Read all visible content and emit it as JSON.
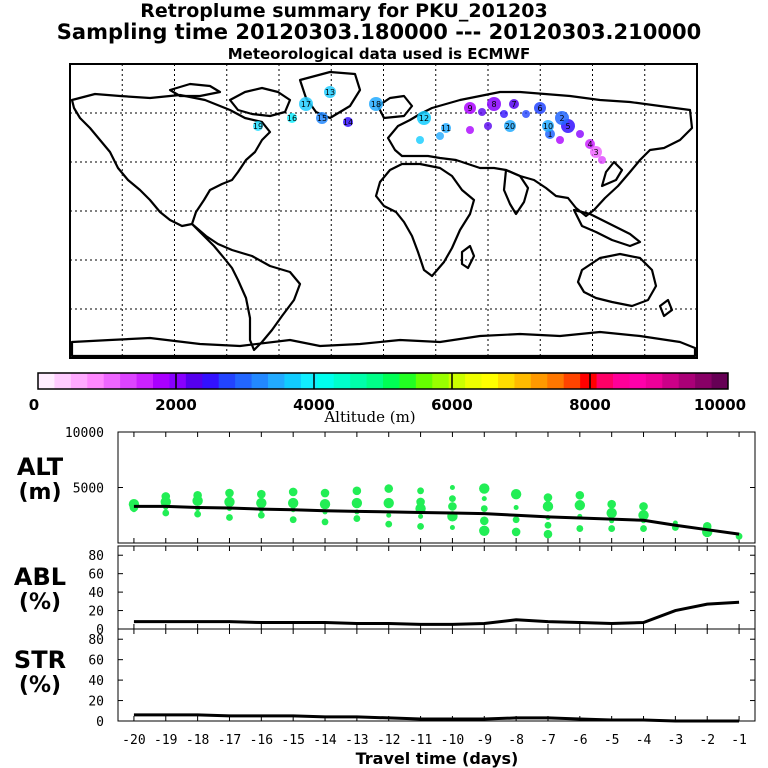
{
  "header": {
    "title": "Retroplume summary for PKU_201203",
    "sampling": "Sampling time   20120303.180000 --- 20120303.210000",
    "met": "Meteorological data used is ECMWF"
  },
  "chart_data": [
    {
      "type": "map",
      "name": "retroplume-map",
      "note": "World map with plume cluster markers over northern Eurasia",
      "cluster_labels": [
        "19",
        "20",
        "17",
        "16",
        "15",
        "18",
        "14",
        "13",
        "12",
        "11",
        "9",
        "8",
        "7",
        "6",
        "5",
        "4",
        "3",
        "2",
        "1",
        "10"
      ]
    },
    {
      "type": "colorbar",
      "xlabel": "Altitude (m)",
      "range": [
        0,
        10000
      ],
      "tick_labels": [
        "0",
        "2000",
        "4000",
        "6000",
        "8000",
        "10000"
      ],
      "colors": [
        "#ffeeff",
        "#ffccff",
        "#ffaaff",
        "#ff88ff",
        "#ee66ff",
        "#dd44ff",
        "#cc22ff",
        "#aa00ff",
        "#8800ff",
        "#5500ee",
        "#3311ff",
        "#2244ff",
        "#2266ff",
        "#2288ff",
        "#22aaff",
        "#11ccff",
        "#11eeff",
        "#00ffee",
        "#00ffcc",
        "#00ffaa",
        "#00ff88",
        "#00ff55",
        "#22ff22",
        "#66ff00",
        "#99ff00",
        "#ccff00",
        "#eeff00",
        "#ffff00",
        "#ffdd00",
        "#ffbb00",
        "#ff9900",
        "#ff7700",
        "#ff4400",
        "#ff0000",
        "#ff0066",
        "#ff0099",
        "#ff00aa",
        "#ee0099",
        "#cc0088",
        "#aa0077",
        "#880066",
        "#660055"
      ]
    },
    {
      "type": "scatter+line",
      "name": "alt-panel",
      "ylabel": "ALT\n(m)",
      "ylabel_lines": [
        "ALT",
        "(m)"
      ],
      "ylim": [
        0,
        10000
      ],
      "ytick_labels": [
        "10000",
        "5000"
      ],
      "x": [
        -20,
        -19,
        -18,
        -17,
        -16,
        -15,
        -14,
        -13,
        -12,
        -11,
        -10,
        -9,
        -8,
        -7,
        -6,
        -5,
        -4,
        -3,
        -2,
        -1
      ],
      "line": [
        3300,
        3300,
        3200,
        3150,
        3050,
        3000,
        2900,
        2850,
        2800,
        2750,
        2700,
        2650,
        2500,
        2350,
        2250,
        2150,
        2050,
        1600,
        1200,
        800
      ],
      "points": [
        [
          -20,
          3000
        ],
        [
          -20,
          3500
        ],
        [
          -20,
          3200
        ],
        [
          -19,
          2700
        ],
        [
          -19,
          3200
        ],
        [
          -19,
          3700
        ],
        [
          -19,
          4200
        ],
        [
          -18,
          2600
        ],
        [
          -18,
          3100
        ],
        [
          -18,
          3800
        ],
        [
          -18,
          4300
        ],
        [
          -17,
          2300
        ],
        [
          -17,
          3100
        ],
        [
          -17,
          3700
        ],
        [
          -17,
          4500
        ],
        [
          -16,
          2500
        ],
        [
          -16,
          3000
        ],
        [
          -16,
          3600
        ],
        [
          -16,
          4400
        ],
        [
          -15,
          2100
        ],
        [
          -15,
          3000
        ],
        [
          -15,
          3600
        ],
        [
          -15,
          4600
        ],
        [
          -14,
          1900
        ],
        [
          -14,
          2800
        ],
        [
          -14,
          3500
        ],
        [
          -14,
          4500
        ],
        [
          -13,
          2200
        ],
        [
          -13,
          2800
        ],
        [
          -13,
          3600
        ],
        [
          -13,
          4700
        ],
        [
          -12,
          1700
        ],
        [
          -12,
          2500
        ],
        [
          -12,
          3600
        ],
        [
          -12,
          4900
        ],
        [
          -11,
          1500
        ],
        [
          -11,
          2400
        ],
        [
          -11,
          3100
        ],
        [
          -11,
          3700
        ],
        [
          -11,
          4700
        ],
        [
          -10,
          1400
        ],
        [
          -10,
          2400
        ],
        [
          -10,
          3300
        ],
        [
          -10,
          4000
        ],
        [
          -10,
          5000
        ],
        [
          -9,
          1100
        ],
        [
          -9,
          2000
        ],
        [
          -9,
          3100
        ],
        [
          -9,
          4000
        ],
        [
          -9,
          4900
        ],
        [
          -8,
          1000
        ],
        [
          -8,
          2100
        ],
        [
          -8,
          3200
        ],
        [
          -8,
          4400
        ],
        [
          -7,
          800
        ],
        [
          -7,
          1600
        ],
        [
          -7,
          2300
        ],
        [
          -7,
          3300
        ],
        [
          -7,
          4100
        ],
        [
          -6,
          1300
        ],
        [
          -6,
          2400
        ],
        [
          -6,
          3400
        ],
        [
          -6,
          4300
        ],
        [
          -5,
          1300
        ],
        [
          -5,
          2000
        ],
        [
          -5,
          2700
        ],
        [
          -5,
          3500
        ],
        [
          -4,
          1300
        ],
        [
          -4,
          2000
        ],
        [
          -4,
          2500
        ],
        [
          -4,
          3300
        ],
        [
          -3,
          1400
        ],
        [
          -3,
          1800
        ],
        [
          -2,
          1000
        ],
        [
          -2,
          1500
        ],
        [
          -1,
          600
        ],
        [
          -1,
          700
        ]
      ],
      "point_color": "#22ee55"
    },
    {
      "type": "line",
      "name": "abl-panel",
      "ylabel_lines": [
        "ABL",
        "(%)"
      ],
      "ylim": [
        0,
        90
      ],
      "ytick_labels": [
        "0",
        "20",
        "40",
        "60",
        "80"
      ],
      "x": [
        -20,
        -19,
        -18,
        -17,
        -16,
        -15,
        -14,
        -13,
        -12,
        -11,
        -10,
        -9,
        -8,
        -7,
        -6,
        -5,
        -4,
        -3,
        -2,
        -1
      ],
      "values": [
        8,
        8,
        8,
        8,
        7,
        7,
        7,
        6,
        6,
        5,
        5,
        6,
        10,
        8,
        7,
        6,
        7,
        20,
        27,
        29
      ]
    },
    {
      "type": "line",
      "name": "str-panel",
      "ylabel_lines": [
        "STR",
        "(%)"
      ],
      "ylim": [
        0,
        90
      ],
      "ytick_labels": [
        "0",
        "20",
        "40",
        "60",
        "80"
      ],
      "x": [
        -20,
        -19,
        -18,
        -17,
        -16,
        -15,
        -14,
        -13,
        -12,
        -11,
        -10,
        -9,
        -8,
        -7,
        -6,
        -5,
        -4,
        -3,
        -2,
        -1
      ],
      "values": [
        6,
        6,
        6,
        5,
        5,
        5,
        4,
        4,
        3,
        2,
        2,
        2,
        3,
        3,
        2,
        1,
        1,
        0,
        0,
        0
      ],
      "xlabel": "Travel time (days)",
      "xtick_labels": [
        "-20",
        "-19",
        "-18",
        "-17",
        "-16",
        "-15",
        "-14",
        "-13",
        "-12",
        "-11",
        "-10",
        "-9",
        "-8",
        "-7",
        "-6",
        "-5",
        "-4",
        "-3",
        "-2",
        "-1"
      ]
    }
  ]
}
